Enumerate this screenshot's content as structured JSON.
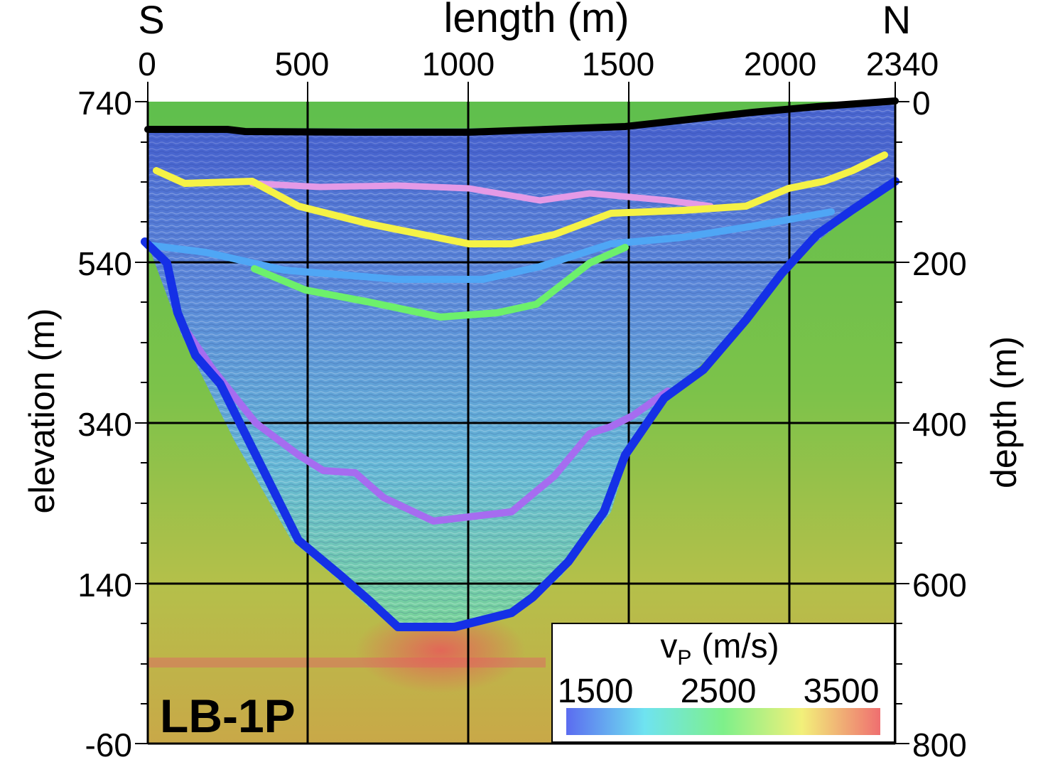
{
  "figure": {
    "profile_id": "LB-1P",
    "direction_left": "S",
    "direction_right": "N",
    "top_axis_title": "length (m)",
    "top_ticks": [
      "0",
      "500",
      "1000",
      "1500",
      "2000",
      "2340"
    ],
    "left_axis_title": "elevation (m)",
    "left_ticks": [
      "740",
      "540",
      "340",
      "140",
      "-60"
    ],
    "right_axis_title": "depth (m)",
    "right_ticks": [
      "0",
      "200",
      "400",
      "600",
      "800"
    ]
  },
  "colorbar": {
    "title_v": "v",
    "title_sub": "P",
    "title_unit": "(m/s)",
    "ticks": [
      "1500",
      "2500",
      "3500"
    ]
  },
  "colors": {
    "surface": "#000000",
    "yellow_horizon": "#f5f246",
    "pink_horizon": "#e49ae6",
    "light_blue_horizon": "#4fa6f5",
    "green_horizon": "#6df06b",
    "purple_horizon": "#a66cf0",
    "basin_base": "#1530e6",
    "bedrock_green": "#6fc24a",
    "fill_blue": "#5a86d8"
  }
}
